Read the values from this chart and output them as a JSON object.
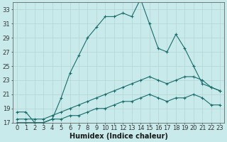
{
  "xlabel": "Humidex (Indice chaleur)",
  "background_color": "#c8eaea",
  "grid_color": "#b8d8d8",
  "line_color": "#1a6b6b",
  "x_values": [
    0,
    1,
    2,
    3,
    4,
    5,
    6,
    7,
    8,
    9,
    10,
    11,
    12,
    13,
    14,
    15,
    16,
    17,
    18,
    19,
    20,
    21,
    22,
    23
  ],
  "series1": [
    18.5,
    18.5,
    17.0,
    17.0,
    17.5,
    20.5,
    24.0,
    26.5,
    29.0,
    30.5,
    32.0,
    32.0,
    32.5,
    32.0,
    34.5,
    31.0,
    27.5,
    27.0,
    29.5,
    27.5,
    25.0,
    22.5,
    22.0,
    21.5
  ],
  "series2": [
    17.5,
    17.5,
    17.5,
    17.5,
    18.0,
    18.5,
    19.0,
    19.5,
    20.0,
    20.5,
    21.0,
    21.5,
    22.0,
    22.5,
    23.0,
    23.5,
    23.0,
    22.5,
    23.0,
    23.5,
    23.5,
    23.0,
    22.0,
    21.5
  ],
  "series3": [
    17.0,
    17.0,
    17.0,
    17.0,
    17.5,
    17.5,
    18.0,
    18.0,
    18.5,
    19.0,
    19.0,
    19.5,
    20.0,
    20.0,
    20.5,
    21.0,
    20.5,
    20.0,
    20.5,
    20.5,
    21.0,
    20.5,
    19.5,
    19.5
  ],
  "ylim": [
    17,
    34
  ],
  "xlim": [
    -0.5,
    23.5
  ],
  "yticks": [
    17,
    19,
    21,
    23,
    25,
    27,
    29,
    31,
    33
  ],
  "xticks": [
    0,
    1,
    2,
    3,
    4,
    5,
    6,
    7,
    8,
    9,
    10,
    11,
    12,
    13,
    14,
    15,
    16,
    17,
    18,
    19,
    20,
    21,
    22,
    23
  ]
}
